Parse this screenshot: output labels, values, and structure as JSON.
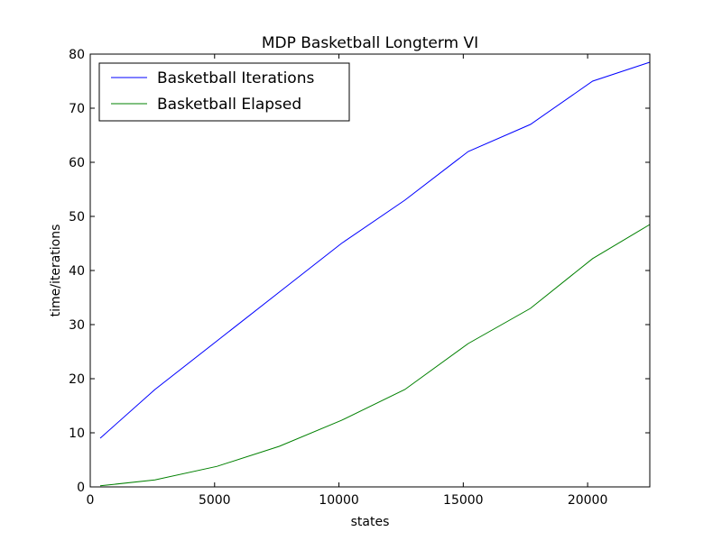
{
  "chart_data": {
    "type": "line",
    "title": "MDP Basketball Longterm VI",
    "xlabel": "states",
    "ylabel": "time/iterations",
    "xlim": [
      0,
      22500
    ],
    "ylim": [
      0,
      80
    ],
    "xticks": [
      0,
      5000,
      10000,
      15000,
      20000
    ],
    "yticks": [
      0,
      10,
      20,
      30,
      40,
      50,
      60,
      70,
      80
    ],
    "grid": false,
    "legend_position": "top-left",
    "series": [
      {
        "name": "Basketball Iterations",
        "color": "#0000ff",
        "x": [
          400,
          2600,
          5100,
          7600,
          10100,
          12650,
          15200,
          17700,
          20200,
          22500
        ],
        "y": [
          9,
          18,
          27,
          36,
          45,
          53,
          62,
          67,
          75,
          78.5
        ]
      },
      {
        "name": "Basketball Elapsed",
        "color": "#008000",
        "x": [
          400,
          2600,
          5100,
          7600,
          10100,
          12650,
          15200,
          17700,
          20200,
          22500
        ],
        "y": [
          0.2,
          1.3,
          3.8,
          7.5,
          12.3,
          18,
          26.5,
          33,
          42.2,
          48.5
        ]
      }
    ]
  }
}
